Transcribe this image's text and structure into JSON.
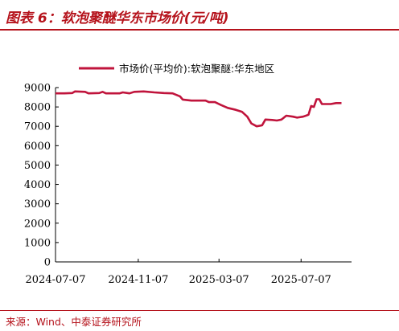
{
  "header": {
    "title": "图表 6：软泡聚醚华东市场价(元/吨)"
  },
  "footer": {
    "source": "来源：Wind、中泰证券研究所"
  },
  "colors": {
    "accent": "#b5121b",
    "series": "#c0143c"
  },
  "chart_data": {
    "type": "line",
    "title": "",
    "xlabel": "",
    "ylabel": "",
    "ylim": [
      0,
      9000
    ],
    "yticks": [
      0,
      1000,
      2000,
      3000,
      4000,
      5000,
      6000,
      7000,
      8000,
      9000
    ],
    "xlim": [
      "2024-07-07",
      "2025-09-20"
    ],
    "xticks": [
      "2024-07-07",
      "2024-11-07",
      "2025-03-07",
      "2025-07-07"
    ],
    "grid": false,
    "legend_position": "top",
    "series": [
      {
        "name": "市场价(平均价):软泡聚醚:华东地区",
        "points": [
          [
            "2024-07-07",
            8700
          ],
          [
            "2024-07-20",
            8700
          ],
          [
            "2024-08-01",
            8720
          ],
          [
            "2024-08-05",
            8800
          ],
          [
            "2024-08-20",
            8780
          ],
          [
            "2024-08-25",
            8700
          ],
          [
            "2024-09-10",
            8720
          ],
          [
            "2024-09-15",
            8780
          ],
          [
            "2024-09-20",
            8700
          ],
          [
            "2024-10-10",
            8700
          ],
          [
            "2024-10-15",
            8750
          ],
          [
            "2024-10-25",
            8700
          ],
          [
            "2024-11-01",
            8780
          ],
          [
            "2024-11-15",
            8800
          ],
          [
            "2024-12-01",
            8750
          ],
          [
            "2024-12-15",
            8720
          ],
          [
            "2024-12-28",
            8700
          ],
          [
            "2025-01-08",
            8550
          ],
          [
            "2025-01-12",
            8380
          ],
          [
            "2025-01-25",
            8330
          ],
          [
            "2025-02-15",
            8330
          ],
          [
            "2025-02-20",
            8250
          ],
          [
            "2025-03-01",
            8250
          ],
          [
            "2025-03-10",
            8100
          ],
          [
            "2025-03-20",
            7950
          ],
          [
            "2025-04-01",
            7850
          ],
          [
            "2025-04-10",
            7750
          ],
          [
            "2025-04-18",
            7500
          ],
          [
            "2025-04-24",
            7150
          ],
          [
            "2025-05-02",
            7000
          ],
          [
            "2025-05-10",
            7050
          ],
          [
            "2025-05-15",
            7350
          ],
          [
            "2025-05-25",
            7330
          ],
          [
            "2025-06-01",
            7300
          ],
          [
            "2025-06-08",
            7350
          ],
          [
            "2025-06-15",
            7550
          ],
          [
            "2025-06-25",
            7500
          ],
          [
            "2025-07-01",
            7450
          ],
          [
            "2025-07-10",
            7500
          ],
          [
            "2025-07-18",
            7600
          ],
          [
            "2025-07-22",
            8050
          ],
          [
            "2025-07-26",
            8000
          ],
          [
            "2025-07-30",
            8400
          ],
          [
            "2025-08-03",
            8400
          ],
          [
            "2025-08-07",
            8150
          ],
          [
            "2025-08-20",
            8150
          ],
          [
            "2025-08-28",
            8200
          ],
          [
            "2025-09-05",
            8200
          ]
        ]
      }
    ]
  }
}
